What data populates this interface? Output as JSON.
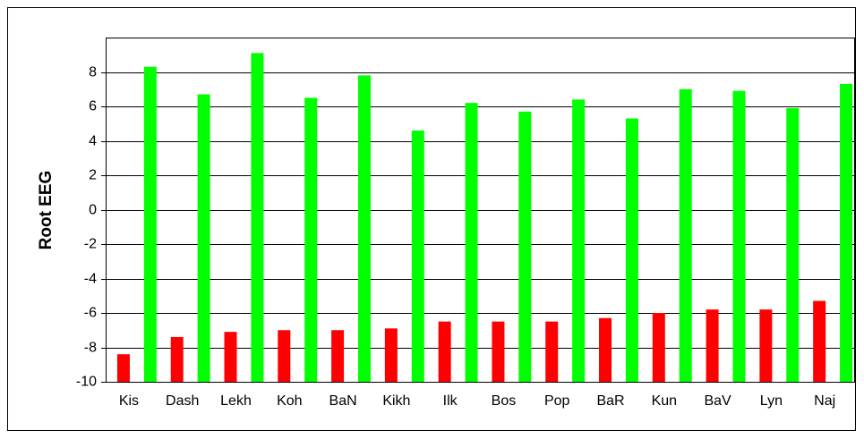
{
  "chart_data": {
    "type": "bar",
    "y_label": "Root EEG",
    "categories": [
      "Kis",
      null,
      "Dash",
      null,
      "Lekh",
      null,
      "Koh",
      null,
      "BaN",
      null,
      "Kikh",
      null,
      "Ilk",
      null,
      "Bos",
      null,
      "Pop",
      null,
      "BaR",
      null,
      "Kun",
      null,
      "BaV",
      null,
      "Lyn",
      null,
      "Naj",
      null
    ],
    "values": [
      -8.4,
      8.3,
      -7.4,
      6.7,
      -7.1,
      9.1,
      -7.0,
      6.5,
      -7.0,
      7.8,
      -6.9,
      4.6,
      -6.5,
      6.2,
      -6.5,
      5.7,
      -6.5,
      6.4,
      -6.3,
      5.3,
      -6.0,
      7.0,
      -5.8,
      6.9,
      -5.8,
      5.9,
      -5.3,
      7.3
    ],
    "colors": [
      "#ff0000",
      "#00ff00",
      "#ff0000",
      "#00ff00",
      "#ff0000",
      "#00ff00",
      "#ff0000",
      "#00ff00",
      "#ff0000",
      "#00ff00",
      "#ff0000",
      "#00ff00",
      "#ff0000",
      "#00ff00",
      "#ff0000",
      "#00ff00",
      "#ff0000",
      "#00ff00",
      "#ff0000",
      "#00ff00",
      "#ff0000",
      "#00ff00",
      "#ff0000",
      "#00ff00",
      "#ff0000",
      "#00ff00",
      "#ff0000",
      "#00ff00"
    ],
    "ylim": [
      -10,
      10
    ],
    "yticks": [
      -10,
      -8,
      -6,
      -4,
      -2,
      0,
      2,
      4,
      6,
      8
    ],
    "grid": true
  }
}
